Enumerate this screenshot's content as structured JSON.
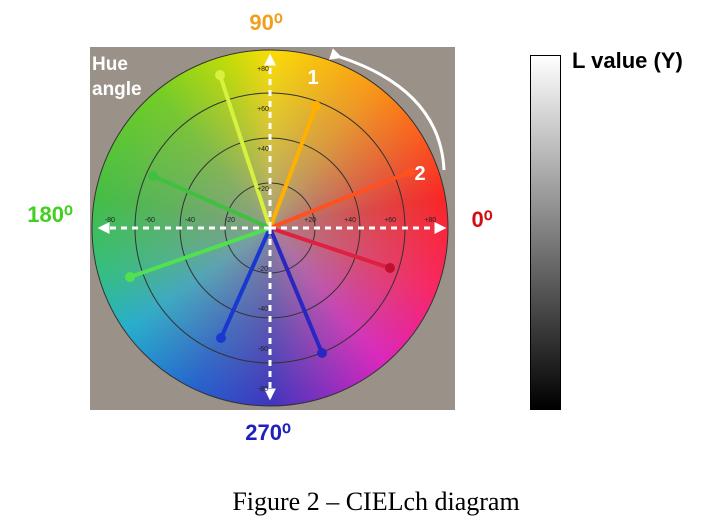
{
  "diagram": {
    "angle_labels": {
      "top": "90⁰",
      "left": "180⁰",
      "right": "0⁰",
      "bottom": "270⁰"
    },
    "hue_label": "Hue angle",
    "markers": [
      "1",
      "2"
    ],
    "scale_label": "L value (Y)",
    "caption": "Figure 2 – CIELch diagram",
    "vertical_ticks": [
      "+80",
      "+60",
      "+40",
      "+20",
      "-20",
      "-40",
      "-60",
      "-80"
    ],
    "horizontal_ticks": [
      "-80",
      "-60",
      "-40",
      "-20",
      "+20",
      "+40",
      "+60",
      "+80"
    ]
  }
}
